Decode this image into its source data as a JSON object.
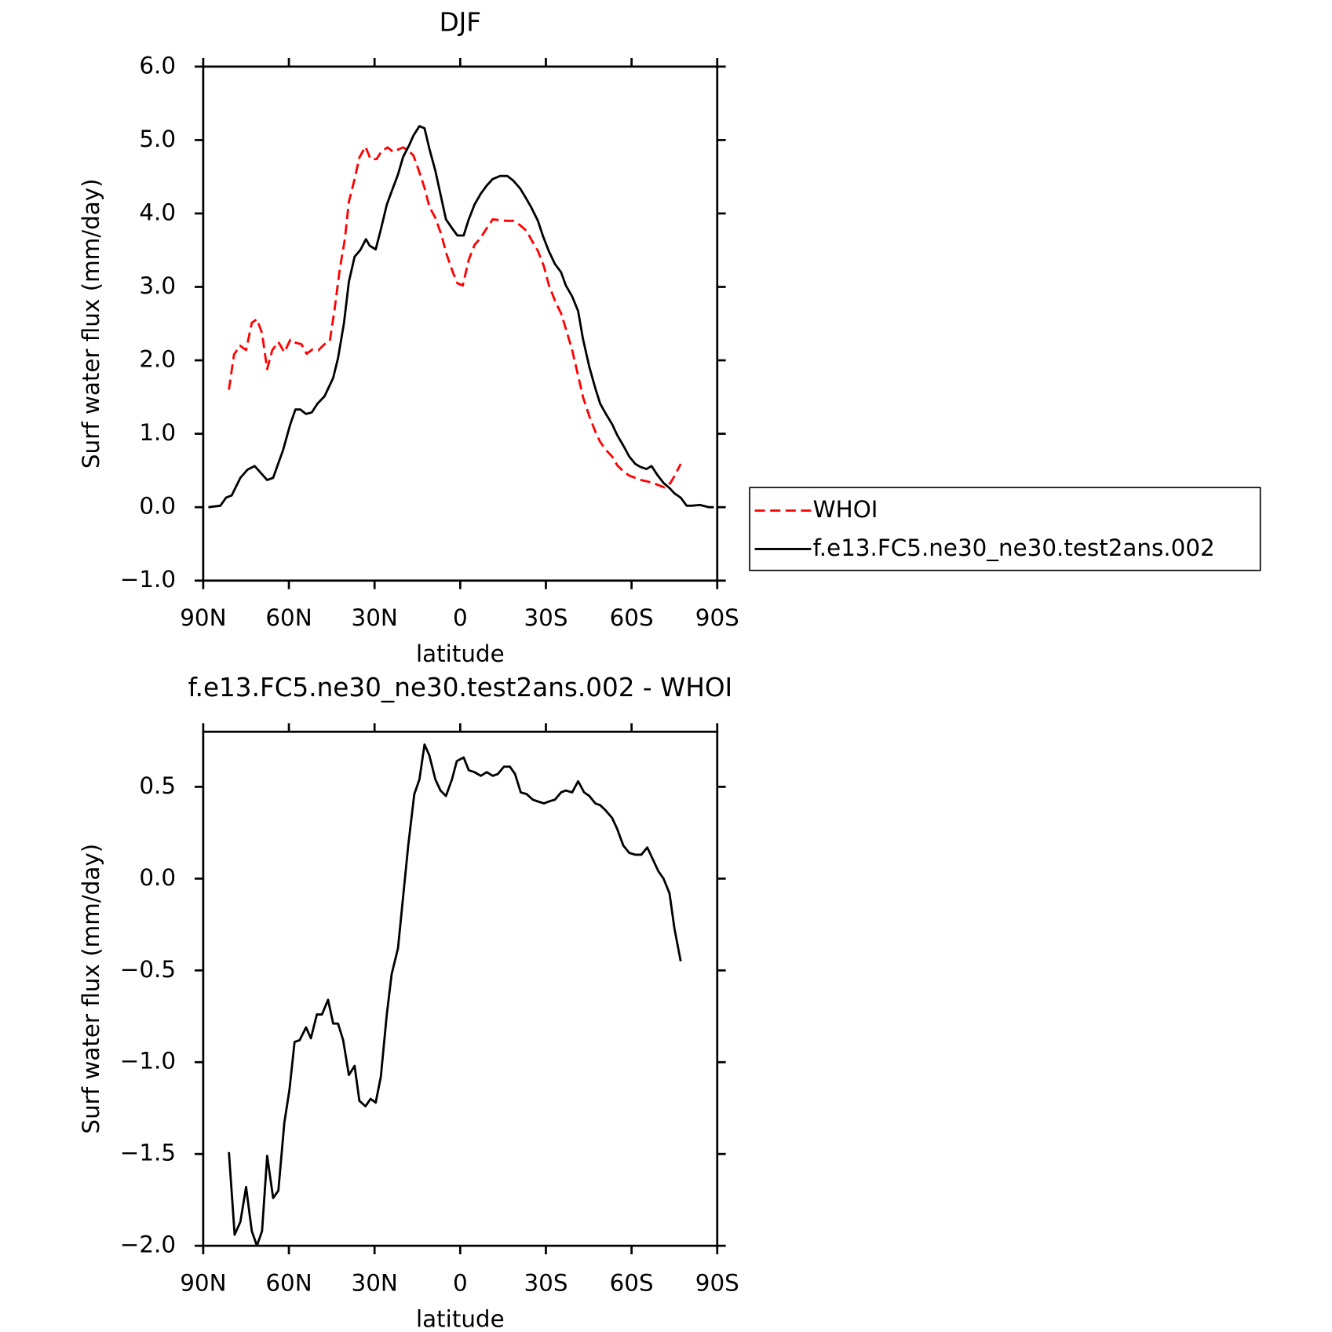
{
  "chart_data": [
    {
      "type": "line",
      "title": "DJF",
      "xlabel": "latitude",
      "ylabel": "Surf water flux (mm/day)",
      "xlim": [
        90,
        -90
      ],
      "xticks": [
        {
          "value": 90,
          "label": "90N"
        },
        {
          "value": 60,
          "label": "60N"
        },
        {
          "value": 30,
          "label": "30N"
        },
        0,
        {
          "value": -30,
          "label": "30S"
        },
        {
          "value": -60,
          "label": "60S"
        },
        {
          "value": -90,
          "label": "90S"
        }
      ],
      "ylim": [
        -1,
        6
      ],
      "yticks": [
        {
          "value": -1,
          "label": "−1.0"
        },
        {
          "value": 0,
          "label": "0.0"
        },
        {
          "value": 1,
          "label": "1.0"
        },
        {
          "value": 2,
          "label": "2.0"
        },
        {
          "value": 3,
          "label": "3.0"
        },
        {
          "value": 4,
          "label": "4.0"
        },
        {
          "value": 5,
          "label": "5.0"
        },
        {
          "value": 6,
          "label": "6.0"
        }
      ],
      "legend": "right",
      "series": [
        {
          "name": "WHOI",
          "color": "#ff0000",
          "line_style": "dashed",
          "x": [
            81,
            79.2,
            77.1,
            75,
            73,
            71.2,
            69.4,
            67.6,
            65.8,
            63.7,
            61.6,
            59.5,
            57.7,
            55.6,
            53.8,
            51.7,
            49.6,
            47.5,
            45.7,
            44,
            42.2,
            40.4,
            39,
            37,
            35.3,
            33.2,
            31.4,
            29.3,
            27.5,
            25.4,
            23.6,
            21.8,
            20,
            18.2,
            16.4,
            14.3,
            12.5,
            10.8,
            8.7,
            6.6,
            4.8,
            2.7,
            1,
            -0.9,
            -3,
            -5,
            -7.2,
            -9.3,
            -11.4,
            -13.5,
            -16.2,
            -18.5,
            -21,
            -23.3,
            -25.1,
            -27.2,
            -29.3,
            -31,
            -33.2,
            -35.3,
            -37,
            -39.2,
            -41.3,
            -43,
            -45.2,
            -47.3,
            -49,
            -51,
            -53.2,
            -55,
            -57.1,
            -59.2,
            -61.3,
            -63.4,
            -65.5,
            -67.6,
            -69.4,
            -71.5,
            -73.6,
            -75.4,
            -77.2
          ],
          "values": [
            1.6,
            2.08,
            2.2,
            2.14,
            2.51,
            2.56,
            2.37,
            1.88,
            2.14,
            2.25,
            2.11,
            2.28,
            2.24,
            2.22,
            2.09,
            2.15,
            2.14,
            2.22,
            2.26,
            2.69,
            3.24,
            3.65,
            4.16,
            4.47,
            4.76,
            4.91,
            4.74,
            4.74,
            4.85,
            4.9,
            4.84,
            4.87,
            4.9,
            4.86,
            4.79,
            4.56,
            4.35,
            4.09,
            3.94,
            3.71,
            3.45,
            3.21,
            3.05,
            3.02,
            3.37,
            3.57,
            3.67,
            3.8,
            3.92,
            3.91,
            3.9,
            3.9,
            3.84,
            3.76,
            3.63,
            3.49,
            3.28,
            3.03,
            2.81,
            2.64,
            2.43,
            2.14,
            1.79,
            1.5,
            1.24,
            1.03,
            0.89,
            0.78,
            0.69,
            0.57,
            0.49,
            0.43,
            0.4,
            0.37,
            0.35,
            0.33,
            0.3,
            0.27,
            0.33,
            0.45,
            0.59
          ]
        },
        {
          "name": "f.e13.FC5.ne30_ne30.test2ans.002",
          "color": "#000000",
          "line_style": "solid",
          "x": [
            88.2,
            84,
            82,
            80,
            77,
            74.5,
            72,
            67.6,
            65.5,
            62,
            59.5,
            57.7,
            56,
            54,
            52,
            50,
            47.5,
            44.5,
            42.8,
            40.7,
            39,
            37,
            35,
            33,
            31.7,
            29.6,
            27.8,
            25.7,
            24,
            21.8,
            20,
            18,
            16.4,
            14.3,
            12.5,
            10.8,
            8.7,
            6.9,
            5,
            2.7,
            1,
            -1.2,
            -3,
            -5,
            -7.2,
            -9.3,
            -11.4,
            -14,
            -16.5,
            -18.5,
            -21,
            -23,
            -24.8,
            -27.2,
            -29,
            -31,
            -33.2,
            -35.3,
            -37,
            -39.2,
            -41.3,
            -43,
            -45.2,
            -47.3,
            -49,
            -51,
            -53.2,
            -55,
            -57.1,
            -59.2,
            -61.3,
            -63,
            -65.2,
            -67,
            -69,
            -71.2,
            -73.3,
            -75,
            -77.2,
            -79.3,
            -81,
            -84,
            -87,
            -88.8
          ],
          "values": [
            0.0,
            0.02,
            0.13,
            0.16,
            0.4,
            0.51,
            0.56,
            0.37,
            0.4,
            0.78,
            1.13,
            1.33,
            1.33,
            1.27,
            1.29,
            1.41,
            1.51,
            1.76,
            2.03,
            2.51,
            3.07,
            3.41,
            3.5,
            3.65,
            3.56,
            3.51,
            3.78,
            4.12,
            4.3,
            4.53,
            4.77,
            4.92,
            5.06,
            5.19,
            5.16,
            4.88,
            4.58,
            4.26,
            3.92,
            3.79,
            3.7,
            3.7,
            3.92,
            4.12,
            4.27,
            4.38,
            4.47,
            4.51,
            4.51,
            4.45,
            4.34,
            4.21,
            4.09,
            3.9,
            3.69,
            3.49,
            3.31,
            3.2,
            3.02,
            2.87,
            2.67,
            2.29,
            1.91,
            1.62,
            1.41,
            1.27,
            1.13,
            0.98,
            0.84,
            0.69,
            0.59,
            0.55,
            0.52,
            0.56,
            0.44,
            0.33,
            0.26,
            0.19,
            0.13,
            0.02,
            0.02,
            0.03,
            0.0,
            0.0
          ]
        }
      ]
    },
    {
      "type": "line",
      "title": "f.e13.FC5.ne30_ne30.test2ans.002 - WHOI",
      "xlabel": "latitude",
      "ylabel": "Surf water flux (mm/day)",
      "xlim": [
        90,
        -90
      ],
      "xticks": [
        {
          "value": 90,
          "label": "90N"
        },
        {
          "value": 60,
          "label": "60N"
        },
        {
          "value": 30,
          "label": "30N"
        },
        0,
        {
          "value": -30,
          "label": "30S"
        },
        {
          "value": -60,
          "label": "60S"
        },
        {
          "value": -90,
          "label": "90S"
        }
      ],
      "ylim": [
        -2,
        0.8
      ],
      "yticks": [
        {
          "value": -2,
          "label": "−2.0"
        },
        {
          "value": -1.5,
          "label": "−1.5"
        },
        {
          "value": -1,
          "label": "−1.0"
        },
        {
          "value": -0.5,
          "label": "−0.5"
        },
        {
          "value": 0,
          "label": "0.0"
        },
        0.5
      ],
      "series": [
        {
          "color": "#000000",
          "line_style": "solid",
          "x": [
            81,
            79,
            77,
            75,
            73,
            71.2,
            69.4,
            67.6,
            65.5,
            63.7,
            61.6,
            59.8,
            58,
            56.2,
            54,
            52.3,
            50.2,
            48.4,
            46.3,
            44.5,
            42.8,
            41,
            39,
            37,
            35.3,
            33.2,
            31.4,
            29.6,
            27.8,
            25.7,
            24,
            21.8,
            20,
            18.2,
            16.1,
            14.3,
            12.5,
            10.8,
            8.7,
            6.9,
            5,
            2.9,
            1.2,
            -1.2,
            -3,
            -5,
            -7.2,
            -9.3,
            -11.4,
            -13.2,
            -15.3,
            -17.4,
            -19.2,
            -21.2,
            -23.3,
            -25.4,
            -27.2,
            -29.3,
            -31,
            -33.2,
            -35.3,
            -37,
            -39.2,
            -41.3,
            -43.4,
            -45.2,
            -47.3,
            -49,
            -51,
            -53.2,
            -55,
            -57.1,
            -59.2,
            -61.3,
            -63.4,
            -65.5,
            -67.3,
            -69.4,
            -71.2,
            -73.3,
            -75,
            -77.2
          ],
          "values": [
            -1.49,
            -1.94,
            -1.87,
            -1.68,
            -1.92,
            -2.0,
            -1.92,
            -1.51,
            -1.74,
            -1.7,
            -1.33,
            -1.15,
            -0.89,
            -0.88,
            -0.81,
            -0.87,
            -0.74,
            -0.74,
            -0.66,
            -0.79,
            -0.79,
            -0.88,
            -1.07,
            -1.02,
            -1.21,
            -1.24,
            -1.2,
            -1.22,
            -1.08,
            -0.74,
            -0.52,
            -0.38,
            -0.1,
            0.18,
            0.46,
            0.54,
            0.73,
            0.67,
            0.54,
            0.48,
            0.45,
            0.54,
            0.64,
            0.66,
            0.59,
            0.58,
            0.56,
            0.58,
            0.56,
            0.57,
            0.61,
            0.61,
            0.57,
            0.47,
            0.46,
            0.43,
            0.42,
            0.41,
            0.42,
            0.43,
            0.47,
            0.48,
            0.47,
            0.53,
            0.47,
            0.45,
            0.41,
            0.4,
            0.37,
            0.33,
            0.27,
            0.18,
            0.14,
            0.13,
            0.13,
            0.17,
            0.11,
            0.04,
            0.0,
            -0.08,
            -0.27,
            -0.45
          ]
        }
      ]
    }
  ]
}
